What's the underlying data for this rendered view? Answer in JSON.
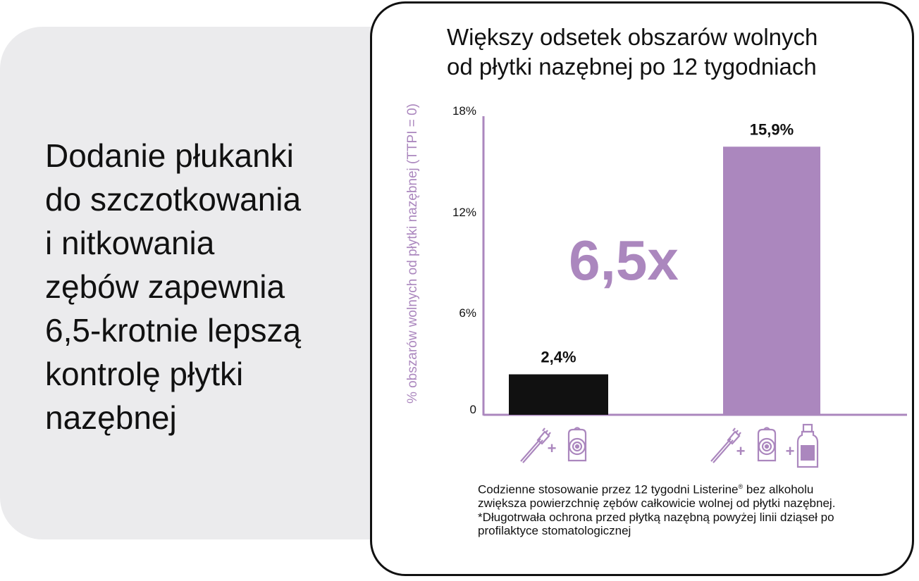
{
  "headline": {
    "lines": [
      "Dodanie płukanki",
      "do szczotkowania",
      "i nitkowania",
      "zębów zapewnia",
      "6,5-krotnie lepszą",
      "kontrolę płytki",
      "nazębnej"
    ]
  },
  "footnote": {
    "line1_a": "Codzienne stosowanie przez 12 tygodni Listerine",
    "line1_reg": "®",
    "line1_b": " bez alkoholu",
    "line2": "zwiększa powierzchnię zębów całkowicie wolnej od płytki nazębnej.",
    "line3": "*Długotrwała ochrona przed płytką nazębną powyżej linii dziąseł po",
    "line4": "profilaktyce stomatologicznej"
  },
  "colors": {
    "accent": "#ab87be",
    "bar_dark": "#111111"
  },
  "chart_data": {
    "type": "bar",
    "title_lines": [
      "Większy odsetek obszarów wolnych",
      "od płytki nazębnej po 12 tygodniach"
    ],
    "ylabel": "% obszarów wolnych od płytki nazębnej (TTPI = 0)",
    "xlabel": "",
    "ylim": [
      0,
      18
    ],
    "yticks": [
      {
        "value": 0,
        "label": "0"
      },
      {
        "value": 6,
        "label": "6%"
      },
      {
        "value": 12,
        "label": "12%"
      },
      {
        "value": 18,
        "label": "18%"
      }
    ],
    "categories": [
      {
        "icons": [
          "toothbrush-icon",
          "floss-icon"
        ]
      },
      {
        "icons": [
          "toothbrush-icon",
          "floss-icon",
          "mouthwash-bottle-icon"
        ]
      }
    ],
    "values": [
      2.4,
      15.9
    ],
    "value_labels": [
      "2,4%",
      "15,9%"
    ],
    "bar_colors": [
      "#111111",
      "#ab87be"
    ],
    "annotation": "6,5x",
    "grid": false
  }
}
